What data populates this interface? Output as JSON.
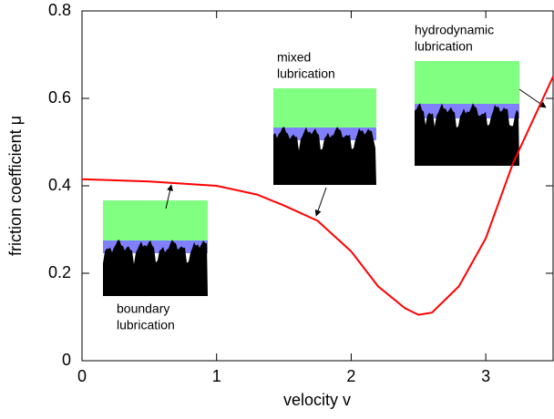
{
  "chart_data": {
    "type": "line",
    "xlabel": "velocity v",
    "ylabel": "friction coefficient μ",
    "x": [
      0,
      0.5,
      1.0,
      1.3,
      1.5,
      1.75,
      2.0,
      2.2,
      2.4,
      2.5,
      2.6,
      2.8,
      3.0,
      3.2,
      3.5
    ],
    "series": [
      {
        "color": "#ff0000",
        "values": [
          0.415,
          0.41,
          0.4,
          0.38,
          0.355,
          0.32,
          0.25,
          0.17,
          0.12,
          0.105,
          0.11,
          0.17,
          0.28,
          0.45,
          0.65
        ]
      }
    ],
    "xlim": [
      0,
      3.5
    ],
    "ylim": [
      0,
      0.8
    ],
    "xticks": [
      0,
      1,
      2,
      3
    ],
    "yticks": [
      0,
      0.2,
      0.4,
      0.6,
      0.8
    ],
    "annotations": [
      [
        "boundary",
        "lubrication"
      ],
      [
        "mixed",
        "lubrication"
      ],
      [
        "hydrodynamic",
        "lubrication"
      ]
    ]
  }
}
